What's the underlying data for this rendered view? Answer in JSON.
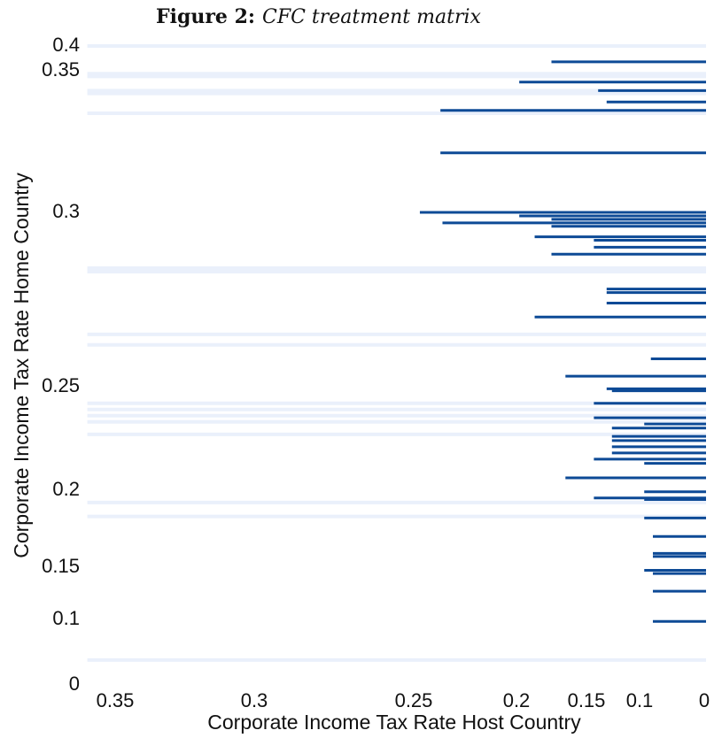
{
  "chart_data": {
    "type": "segments",
    "title_prefix": "Figure 2:",
    "title": "CFC treatment matrix",
    "xlabel": "Corporate Income Tax Rate Host Country",
    "ylabel": "Corporate Income Tax Rate Home Country",
    "xlim": [
      0.36,
      0
    ],
    "ylim": [
      0,
      0.4
    ],
    "xticks": [
      0.35,
      0.3,
      0.25,
      0.2,
      0.15,
      0.1,
      0
    ],
    "yticks": [
      0.4,
      0.35,
      0.3,
      0.25,
      0.2,
      0.15,
      0.1,
      0
    ],
    "color": "#0d4a96",
    "background_color": "#eaf0fb",
    "y": [
      0.368,
      0.346,
      0.343,
      0.339,
      0.336,
      0.321,
      0.3,
      0.299,
      0.298,
      0.297,
      0.296,
      0.293,
      0.292,
      0.29,
      0.288,
      0.278,
      0.277,
      0.274,
      0.27,
      0.258,
      0.253,
      0.249,
      0.248,
      0.242,
      0.235,
      0.232,
      0.23,
      0.226,
      0.224,
      0.221,
      0.218,
      0.215,
      0.213,
      0.206,
      0.199,
      0.195,
      0.194,
      0.182,
      0.17,
      0.159,
      0.157,
      0.147,
      0.144,
      0.127,
      0.097
    ],
    "x": [
      0.175,
      0.198,
      0.139,
      0.131,
      0.237,
      0.237,
      0.247,
      0.198,
      0.175,
      0.236,
      0.175,
      0.187,
      0.143,
      0.143,
      0.175,
      0.131,
      0.131,
      0.131,
      0.187,
      0.083,
      0.165,
      0.131,
      0.126,
      0.143,
      0.143,
      0.093,
      0.126,
      0.126,
      0.126,
      0.126,
      0.126,
      0.143,
      0.093,
      0.165,
      0.093,
      0.143,
      0.093,
      0.093,
      0.08,
      0.08,
      0.08,
      0.093,
      0.08,
      0.08,
      0.08
    ],
    "background_y": [
      0.4,
      0.349,
      0.348,
      0.343,
      0.342,
      0.335,
      0.284,
      0.283,
      0.265,
      0.262,
      0.242,
      0.239,
      0.236,
      0.233,
      0.227,
      0.192,
      0.183,
      0.038
    ]
  }
}
